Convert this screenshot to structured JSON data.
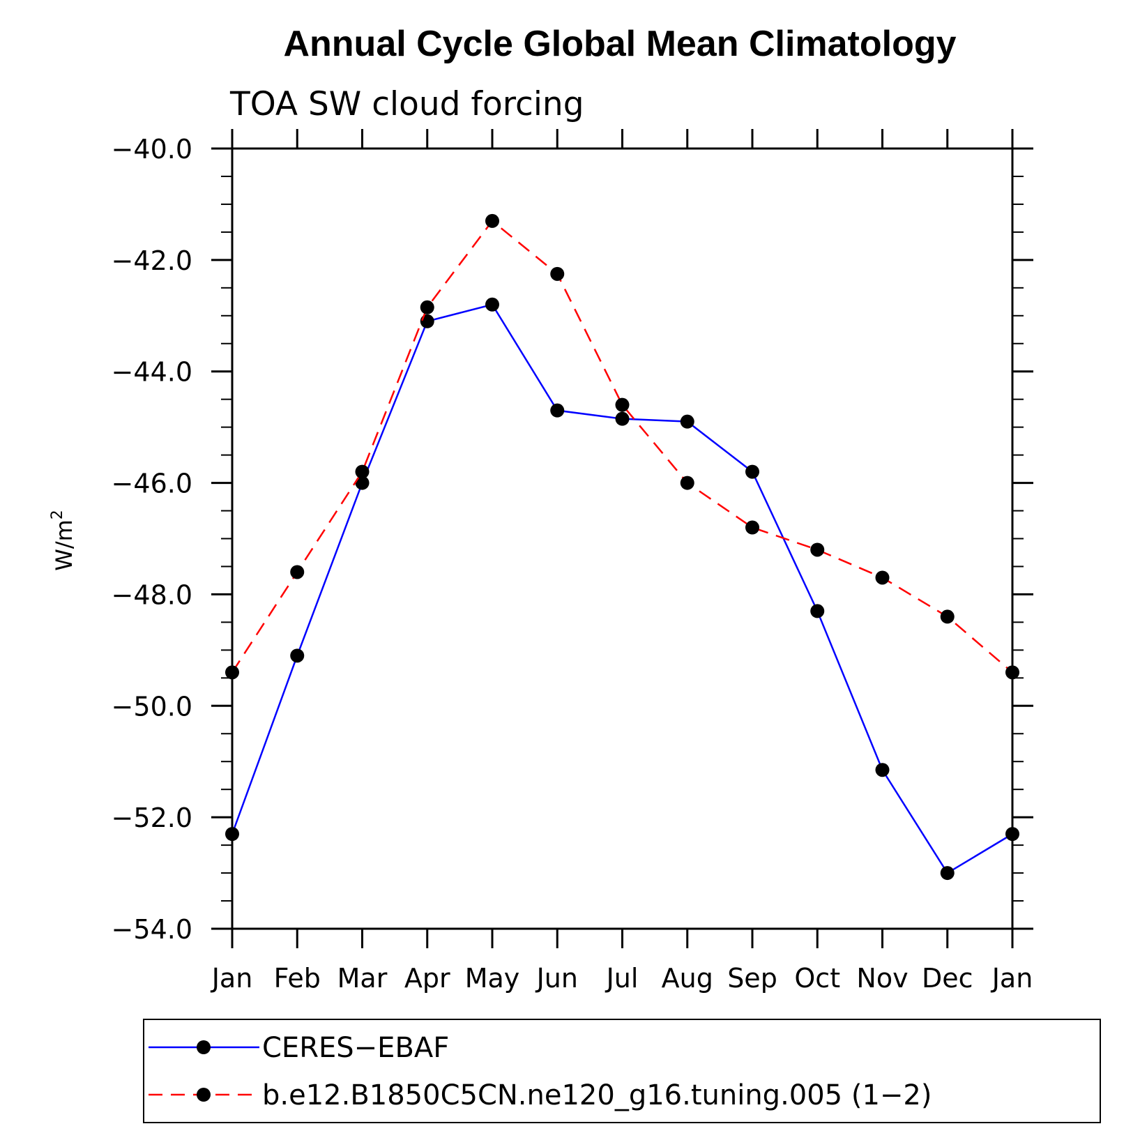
{
  "chart_data": {
    "type": "line",
    "title": "Annual Cycle Global Mean Climatology",
    "subtitle": "TOA SW cloud forcing",
    "xlabel": "",
    "ylabel": "W/m",
    "ylabel_sup": "2",
    "categories": [
      "Jan",
      "Feb",
      "Mar",
      "Apr",
      "May",
      "Jun",
      "Jul",
      "Aug",
      "Sep",
      "Oct",
      "Nov",
      "Dec",
      "Jan"
    ],
    "ylim": [
      -54.0,
      -40.0
    ],
    "yticks": [
      -40.0,
      -42.0,
      -44.0,
      -46.0,
      -48.0,
      -50.0,
      -52.0,
      -54.0
    ],
    "ytick_labels": [
      "−40.0",
      "−42.0",
      "−44.0",
      "−46.0",
      "−48.0",
      "−50.0",
      "−52.0",
      "−54.0"
    ],
    "y_minor_step": 0.5,
    "grid": false,
    "legend_position": "bottom",
    "series": [
      {
        "name": "CERES−EBAF",
        "color": "#0000ff",
        "line_style": "solid",
        "marker": "filled-circle",
        "values": [
          -52.3,
          -49.1,
          -46.0,
          -43.1,
          -42.8,
          -44.7,
          -44.85,
          -44.9,
          -45.8,
          -48.3,
          -51.15,
          -53.0,
          -52.3
        ]
      },
      {
        "name": "b.e12.B1850C5CN.ne120_g16.tuning.005 (1−2)",
        "color": "#ff0000",
        "line_style": "dashed",
        "marker": "filled-circle",
        "values": [
          -49.4,
          -47.6,
          -45.8,
          -42.85,
          -41.3,
          -42.25,
          -44.6,
          -46.0,
          -46.8,
          -47.2,
          -47.7,
          -48.4,
          -49.4
        ]
      }
    ]
  }
}
